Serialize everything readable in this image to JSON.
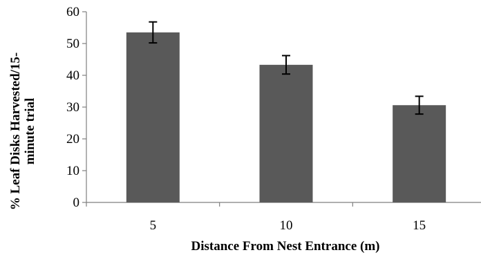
{
  "chart_data": {
    "type": "bar",
    "categories": [
      "5",
      "10",
      "15"
    ],
    "values": [
      53.5,
      43.3,
      30.6
    ],
    "error": [
      3.3,
      2.9,
      2.8
    ],
    "xlabel": "Distance From Nest Entrance (m)",
    "ylabel": [
      "% Leaf Disks Harvested/15-",
      "minute trial"
    ],
    "ylim": [
      0,
      60
    ],
    "yticks": [
      0,
      10,
      20,
      30,
      40,
      50,
      60
    ],
    "grid": false,
    "legend": "none",
    "bar_color": "#595959"
  }
}
